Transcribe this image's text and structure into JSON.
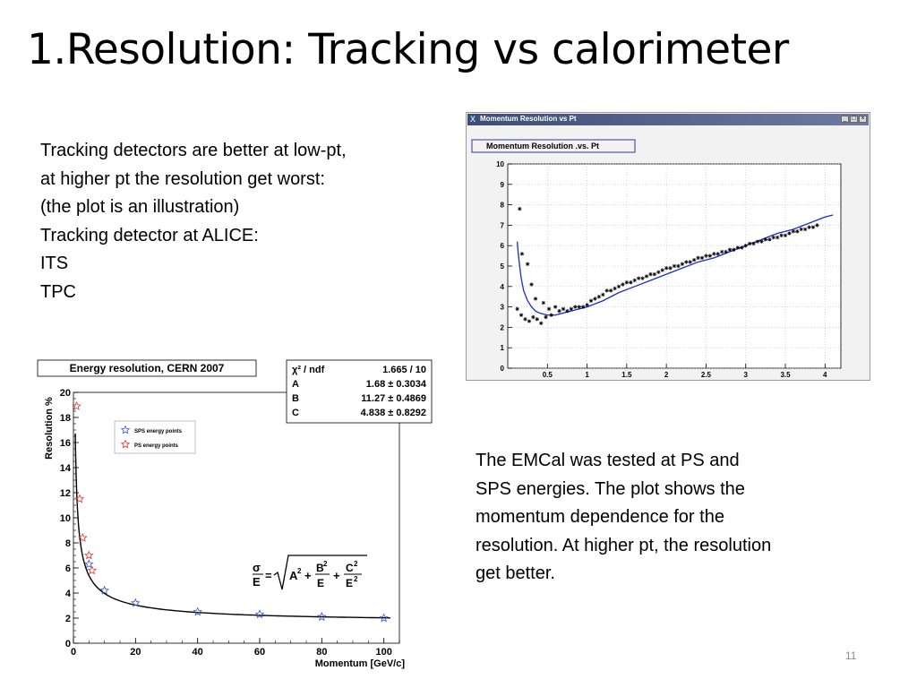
{
  "slide": {
    "title": "1.Resolution: Tracking vs calorimeter",
    "left_text": [
      "Tracking detectors are better at low-pt,",
      "at higher pt the resolution get worst:",
      "(the plot is an illustration)",
      "Tracking detector at ALICE:",
      "ITS",
      "TPC"
    ],
    "right_text": [
      "The EMCal was tested at PS and",
      "SPS energies. The plot shows the",
      "momentum dependence for the",
      "resolution. At higher pt, the resolution",
      "get better."
    ],
    "page_number": "11"
  },
  "momentum_window": {
    "window_title": "Momentum Resolution vs Pt",
    "buttons": [
      "_",
      "□",
      "×"
    ]
  },
  "energy_fit": {
    "chi2_label": "χ² / ndf",
    "chi2_value": "1.665 / 10",
    "params": [
      {
        "name": "A",
        "value": "1.68 ± 0.3034"
      },
      {
        "name": "B",
        "value": "11.27 ± 0.4869"
      },
      {
        "name": "C",
        "value": "4.838 ± 0.8292"
      }
    ]
  },
  "chart_data": [
    {
      "type": "scatter",
      "title": "Momentum Resolution .vs. Pt",
      "xlabel": "",
      "ylabel": "",
      "xlim": [
        0,
        4.2
      ],
      "ylim": [
        0,
        10
      ],
      "xticks": [
        0.5,
        1,
        1.5,
        2,
        2.5,
        3,
        3.5,
        4
      ],
      "yticks": [
        0,
        1,
        2,
        3,
        4,
        5,
        6,
        7,
        8,
        9,
        10
      ],
      "grid": true,
      "series": [
        {
          "marker": "asterisk",
          "color": "#000000",
          "x": [
            0.12,
            0.17,
            0.22,
            0.27,
            0.32,
            0.37,
            0.42,
            0.48,
            0.55,
            0.15,
            0.18,
            0.25,
            0.3,
            0.35,
            0.45,
            0.52,
            0.6,
            0.65,
            0.7,
            0.75,
            0.8,
            0.85,
            0.9,
            0.95,
            1.0,
            1.05,
            1.1,
            1.15,
            1.2,
            1.25,
            1.3,
            1.35,
            1.4,
            1.45,
            1.5,
            1.55,
            1.6,
            1.65,
            1.7,
            1.75,
            1.8,
            1.85,
            1.9,
            1.95,
            2.0,
            2.05,
            2.1,
            2.15,
            2.2,
            2.25,
            2.3,
            2.35,
            2.4,
            2.45,
            2.5,
            2.55,
            2.6,
            2.65,
            2.7,
            2.75,
            2.8,
            2.85,
            2.9,
            2.95,
            3.0,
            3.05,
            3.1,
            3.15,
            3.2,
            3.25,
            3.3,
            3.35,
            3.4,
            3.45,
            3.5,
            3.55,
            3.6,
            3.65,
            3.7,
            3.75,
            3.8,
            3.85,
            3.9
          ],
          "y": [
            2.9,
            2.6,
            2.4,
            2.3,
            2.5,
            2.4,
            2.2,
            2.5,
            2.6,
            7.8,
            5.6,
            5.1,
            4.1,
            3.4,
            3.2,
            2.9,
            3.0,
            2.8,
            2.9,
            2.8,
            2.9,
            3.0,
            3.0,
            3.0,
            3.1,
            3.3,
            3.4,
            3.5,
            3.6,
            3.8,
            3.8,
            3.9,
            4.0,
            4.1,
            4.2,
            4.2,
            4.3,
            4.4,
            4.4,
            4.5,
            4.6,
            4.6,
            4.7,
            4.8,
            4.9,
            4.9,
            5.0,
            5.0,
            5.1,
            5.2,
            5.2,
            5.3,
            5.4,
            5.4,
            5.5,
            5.5,
            5.6,
            5.6,
            5.7,
            5.7,
            5.8,
            5.8,
            5.9,
            5.9,
            6.0,
            6.1,
            6.1,
            6.2,
            6.2,
            6.3,
            6.3,
            6.4,
            6.4,
            6.5,
            6.5,
            6.6,
            6.7,
            6.7,
            6.8,
            6.8,
            6.9,
            6.9,
            7.0
          ]
        },
        {
          "marker": "line",
          "color": "#1a2ccc",
          "x": [
            0.12,
            0.13,
            0.15,
            0.17,
            0.2,
            0.25,
            0.3,
            0.35,
            0.4,
            0.5,
            0.6,
            0.7,
            0.8,
            0.9,
            1.0,
            1.2,
            1.4,
            1.6,
            1.8,
            2.0,
            2.2,
            2.4,
            2.6,
            2.8,
            3.0,
            3.2,
            3.4,
            3.6,
            3.8,
            4.0,
            4.1
          ],
          "y": [
            6.2,
            5.7,
            5.0,
            4.4,
            3.8,
            3.3,
            3.0,
            2.8,
            2.7,
            2.6,
            2.6,
            2.7,
            2.8,
            2.9,
            3.0,
            3.3,
            3.7,
            4.0,
            4.3,
            4.6,
            4.9,
            5.2,
            5.4,
            5.7,
            6.0,
            6.3,
            6.6,
            6.8,
            7.1,
            7.4,
            7.5
          ]
        }
      ]
    },
    {
      "type": "scatter",
      "title": "Energy resolution, CERN 2007",
      "xlabel": "Momentum [GeV/c]",
      "ylabel": "Resolution %",
      "xlim": [
        0,
        105
      ],
      "ylim": [
        0,
        20
      ],
      "xticks": [
        0,
        20,
        40,
        60,
        80,
        100
      ],
      "yticks": [
        0,
        2,
        4,
        6,
        8,
        10,
        12,
        14,
        16,
        18,
        20
      ],
      "grid": false,
      "legend_position": "top-left",
      "formula": "σ/E = √(A² + B²/E + C²/E²)",
      "series": [
        {
          "name": "SPS energy points",
          "marker": "star",
          "color": "#3b55d6",
          "x": [
            5,
            10,
            20,
            40,
            60,
            80,
            100
          ],
          "y": [
            6.3,
            4.2,
            3.2,
            2.5,
            2.3,
            2.1,
            2.0
          ]
        },
        {
          "name": "PS energy points",
          "marker": "star",
          "color": "#e03535",
          "x": [
            1,
            2,
            3,
            5,
            6
          ],
          "y": [
            18.9,
            11.5,
            8.4,
            7.0,
            5.8
          ]
        },
        {
          "marker": "line",
          "color": "#000000",
          "fit": {
            "A": 1.68,
            "B": 11.27,
            "C": 4.838
          }
        }
      ]
    }
  ]
}
